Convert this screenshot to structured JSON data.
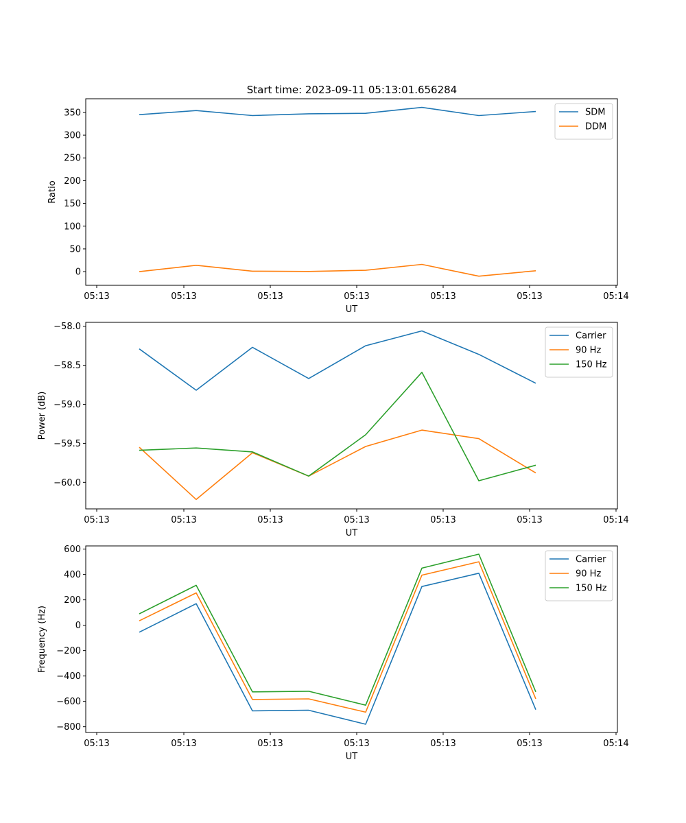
{
  "chart_data": [
    {
      "type": "line",
      "title": "Start time: 2023-09-11 05:13:01.656284",
      "xlabel": "UT",
      "ylabel": "Ratio",
      "x_tick_labels": [
        "05:13",
        "05:13",
        "05:13",
        "05:13",
        "05:13",
        "05:13",
        "05:14"
      ],
      "y_ticks": [
        0,
        50,
        100,
        150,
        200,
        250,
        300,
        350
      ],
      "ylim": [
        -30,
        380
      ],
      "legend_position": "top-right",
      "series": [
        {
          "name": "SDM",
          "color": "#1f77b4",
          "values": [
            345,
            354,
            343,
            347,
            348,
            361,
            343,
            352
          ]
        },
        {
          "name": "DDM",
          "color": "#ff7f0e",
          "values": [
            0,
            14,
            1,
            0.5,
            3,
            16,
            -10,
            2
          ]
        }
      ]
    },
    {
      "type": "line",
      "title": "",
      "xlabel": "UT",
      "ylabel": "Power (dB)",
      "x_tick_labels": [
        "05:13",
        "05:13",
        "05:13",
        "05:13",
        "05:13",
        "05:13",
        "05:14"
      ],
      "y_ticks": [
        -60.0,
        -59.5,
        -59.0,
        -58.5,
        -58.0
      ],
      "y_tick_labels": [
        "−60.0",
        "−59.5",
        "−59.0",
        "−58.5",
        "−58.0"
      ],
      "ylim": [
        -60.34,
        -57.95
      ],
      "legend_position": "top-right",
      "series": [
        {
          "name": "Carrier",
          "color": "#1f77b4",
          "values": [
            -58.29,
            -58.82,
            -58.27,
            -58.67,
            -58.25,
            -58.06,
            -58.36,
            -58.73
          ]
        },
        {
          "name": "90 Hz",
          "color": "#ff7f0e",
          "values": [
            -59.55,
            -60.22,
            -59.62,
            -59.92,
            -59.54,
            -59.33,
            -59.44,
            -59.88
          ]
        },
        {
          "name": "150 Hz",
          "color": "#2ca02c",
          "values": [
            -59.59,
            -59.56,
            -59.61,
            -59.92,
            -59.39,
            -58.59,
            -59.98,
            -59.78
          ]
        }
      ]
    },
    {
      "type": "line",
      "title": "",
      "xlabel": "UT",
      "ylabel": "Frequency (Hz)",
      "x_tick_labels": [
        "05:13",
        "05:13",
        "05:13",
        "05:13",
        "05:13",
        "05:13",
        "05:14"
      ],
      "y_ticks": [
        -800,
        -600,
        -400,
        -200,
        0,
        200,
        400,
        600
      ],
      "y_tick_labels": [
        "−800",
        "−600",
        "−400",
        "−200",
        "0",
        "200",
        "400",
        "600"
      ],
      "ylim": [
        -845,
        625
      ],
      "legend_position": "top-right",
      "series": [
        {
          "name": "Carrier",
          "color": "#1f77b4",
          "values": [
            -55,
            170,
            -675,
            -670,
            -780,
            305,
            410,
            -665
          ]
        },
        {
          "name": "90 Hz",
          "color": "#ff7f0e",
          "values": [
            35,
            255,
            -585,
            -580,
            -685,
            395,
            500,
            -580
          ]
        },
        {
          "name": "150 Hz",
          "color": "#2ca02c",
          "values": [
            90,
            315,
            -525,
            -520,
            -630,
            450,
            560,
            -525
          ]
        }
      ]
    }
  ]
}
